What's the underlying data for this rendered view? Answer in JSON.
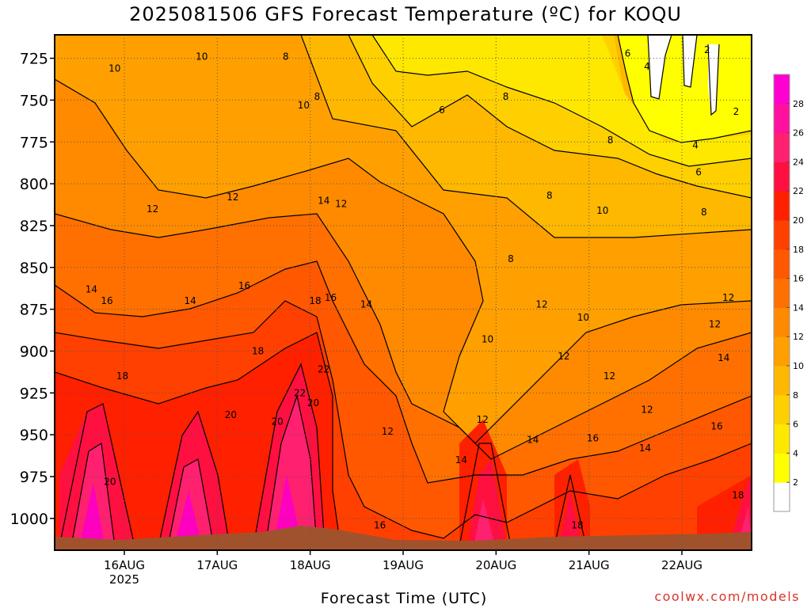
{
  "title": "2025081506 GFS Forecast Temperature (ºC) for KOQU",
  "xlabel": "Forecast Time (UTC)",
  "credit": "coolwx.com/models",
  "chart_data": {
    "type": "heatmap",
    "title": "2025081506 GFS Forecast Temperature (ºC) for KOQU",
    "xlabel": "Forecast Time (UTC)",
    "ylabel": "",
    "y_axis": {
      "ticks": [
        725,
        750,
        775,
        800,
        825,
        850,
        875,
        900,
        925,
        950,
        975,
        1000
      ],
      "range": [
        711,
        1019
      ],
      "inverted": true
    },
    "x_axis": {
      "ticks": [
        {
          "label": "16AUG",
          "sub": "2025",
          "hour": 24
        },
        {
          "label": "17AUG",
          "sub": "",
          "hour": 48
        },
        {
          "label": "18AUG",
          "sub": "",
          "hour": 72
        },
        {
          "label": "19AUG",
          "sub": "",
          "hour": 96
        },
        {
          "label": "20AUG",
          "sub": "",
          "hour": 120
        },
        {
          "label": "21AUG",
          "sub": "",
          "hour": 144
        },
        {
          "label": "22AUG",
          "sub": "",
          "hour": 168
        }
      ],
      "range_hours": [
        6,
        186
      ]
    },
    "grid": true,
    "colorbar": {
      "levels": [
        0,
        2,
        4,
        6,
        8,
        10,
        12,
        14,
        16,
        18,
        20,
        22,
        24,
        26,
        28,
        30
      ],
      "labels": [
        "2",
        "4",
        "6",
        "8",
        "10",
        "12",
        "14",
        "16",
        "18",
        "20",
        "22",
        "24",
        "26",
        "28"
      ],
      "colors": [
        "#ffffff",
        "#ffff00",
        "#ffe800",
        "#ffd000",
        "#ffb800",
        "#ffa000",
        "#ff8a00",
        "#ff7000",
        "#ff5800",
        "#ff4000",
        "#ff2000",
        "#ff1040",
        "#ff2070",
        "#ff10a0",
        "#ff00d0"
      ]
    },
    "contour_labels": [
      {
        "t": "10",
        "h": 21.5,
        "p": 731
      },
      {
        "t": "10",
        "h": 44,
        "p": 724
      },
      {
        "t": "8",
        "h": 65.7,
        "p": 724
      },
      {
        "t": "8",
        "h": 73.8,
        "p": 748
      },
      {
        "t": "10",
        "h": 70.3,
        "p": 753
      },
      {
        "t": "6",
        "h": 106,
        "p": 756
      },
      {
        "t": "8",
        "h": 122.5,
        "p": 748
      },
      {
        "t": "6",
        "h": 154,
        "p": 722
      },
      {
        "t": "4",
        "h": 159,
        "p": 730
      },
      {
        "t": "2",
        "h": 174.5,
        "p": 720
      },
      {
        "t": "2",
        "h": 182,
        "p": 757
      },
      {
        "t": "4",
        "h": 171.5,
        "p": 777
      },
      {
        "t": "8",
        "h": 149.5,
        "p": 774
      },
      {
        "t": "6",
        "h": 172.3,
        "p": 793
      },
      {
        "t": "8",
        "h": 133.8,
        "p": 807
      },
      {
        "t": "12",
        "h": 52,
        "p": 808
      },
      {
        "t": "14",
        "h": 75.5,
        "p": 810
      },
      {
        "t": "12",
        "h": 80,
        "p": 812
      },
      {
        "t": "12",
        "h": 31.3,
        "p": 815
      },
      {
        "t": "10",
        "h": 147.5,
        "p": 816
      },
      {
        "t": "8",
        "h": 173.7,
        "p": 817
      },
      {
        "t": "8",
        "h": 123.8,
        "p": 845
      },
      {
        "t": "14",
        "h": 15.5,
        "p": 863
      },
      {
        "t": "16",
        "h": 19.5,
        "p": 870
      },
      {
        "t": "16",
        "h": 55,
        "p": 861
      },
      {
        "t": "14",
        "h": 41,
        "p": 870
      },
      {
        "t": "18",
        "h": 73.3,
        "p": 870
      },
      {
        "t": "16",
        "h": 77.3,
        "p": 868
      },
      {
        "t": "14",
        "h": 86.5,
        "p": 872
      },
      {
        "t": "12",
        "h": 131.8,
        "p": 872
      },
      {
        "t": "10",
        "h": 142.5,
        "p": 880
      },
      {
        "t": "12",
        "h": 180,
        "p": 868
      },
      {
        "t": "12",
        "h": 176.5,
        "p": 884
      },
      {
        "t": "10",
        "h": 117.8,
        "p": 893
      },
      {
        "t": "18",
        "h": 58.5,
        "p": 900
      },
      {
        "t": "12",
        "h": 137.5,
        "p": 903
      },
      {
        "t": "14",
        "h": 178.8,
        "p": 904
      },
      {
        "t": "22",
        "h": 75.5,
        "p": 911
      },
      {
        "t": "18",
        "h": 23.5,
        "p": 915
      },
      {
        "t": "12",
        "h": 149.3,
        "p": 915
      },
      {
        "t": "22",
        "h": 69.3,
        "p": 925
      },
      {
        "t": "20",
        "h": 72.8,
        "p": 931
      },
      {
        "t": "12",
        "h": 159,
        "p": 935
      },
      {
        "t": "20",
        "h": 51.5,
        "p": 938
      },
      {
        "t": "12",
        "h": 116.5,
        "p": 941
      },
      {
        "t": "20",
        "h": 63.5,
        "p": 942
      },
      {
        "t": "16",
        "h": 177,
        "p": 945
      },
      {
        "t": "12",
        "h": 92,
        "p": 948
      },
      {
        "t": "14",
        "h": 129.5,
        "p": 953
      },
      {
        "t": "16",
        "h": 145,
        "p": 952
      },
      {
        "t": "14",
        "h": 158.5,
        "p": 958
      },
      {
        "t": "14",
        "h": 111,
        "p": 965
      },
      {
        "t": "20",
        "h": 20.3,
        "p": 978
      },
      {
        "t": "18",
        "h": 182.5,
        "p": 986
      },
      {
        "t": "18",
        "h": 141,
        "p": 1004
      },
      {
        "t": "16",
        "h": 90,
        "p": 1004
      }
    ]
  }
}
